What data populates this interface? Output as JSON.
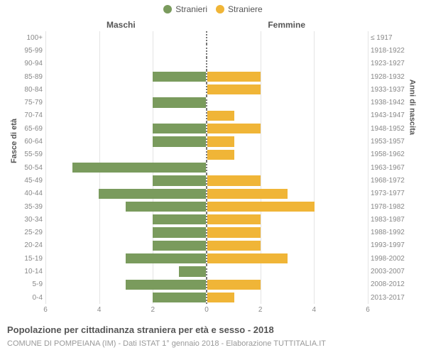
{
  "chart": {
    "type": "population-pyramid",
    "legend": [
      {
        "label": "Stranieri",
        "color": "#7a9b5d"
      },
      {
        "label": "Straniere",
        "color": "#f0b537"
      }
    ],
    "column_headers": {
      "left": "Maschi",
      "right": "Femmine"
    },
    "y_title_left": "Fasce di età",
    "y_title_right": "Anni di nascita",
    "x_max": 6,
    "x_ticks_left": [
      6,
      4,
      2,
      0
    ],
    "x_ticks_right": [
      0,
      2,
      4,
      6
    ],
    "grid_color": "#e4e4e4",
    "axis_line_color": "#777777",
    "bar_colors": {
      "male": "#7a9b5d",
      "female": "#f0b537"
    },
    "background_color": "#ffffff",
    "rows": [
      {
        "age": "100+",
        "birth": "≤ 1917",
        "m": 0,
        "f": 0
      },
      {
        "age": "95-99",
        "birth": "1918-1922",
        "m": 0,
        "f": 0
      },
      {
        "age": "90-94",
        "birth": "1923-1927",
        "m": 0,
        "f": 0
      },
      {
        "age": "85-89",
        "birth": "1928-1932",
        "m": 2,
        "f": 2
      },
      {
        "age": "80-84",
        "birth": "1933-1937",
        "m": 0,
        "f": 2
      },
      {
        "age": "75-79",
        "birth": "1938-1942",
        "m": 2,
        "f": 0
      },
      {
        "age": "70-74",
        "birth": "1943-1947",
        "m": 0,
        "f": 1
      },
      {
        "age": "65-69",
        "birth": "1948-1952",
        "m": 2,
        "f": 2
      },
      {
        "age": "60-64",
        "birth": "1953-1957",
        "m": 2,
        "f": 1
      },
      {
        "age": "55-59",
        "birth": "1958-1962",
        "m": 0,
        "f": 1
      },
      {
        "age": "50-54",
        "birth": "1963-1967",
        "m": 5,
        "f": 0
      },
      {
        "age": "45-49",
        "birth": "1968-1972",
        "m": 2,
        "f": 2
      },
      {
        "age": "40-44",
        "birth": "1973-1977",
        "m": 4,
        "f": 3
      },
      {
        "age": "35-39",
        "birth": "1978-1982",
        "m": 3,
        "f": 4
      },
      {
        "age": "30-34",
        "birth": "1983-1987",
        "m": 2,
        "f": 2
      },
      {
        "age": "25-29",
        "birth": "1988-1992",
        "m": 2,
        "f": 2
      },
      {
        "age": "20-24",
        "birth": "1993-1997",
        "m": 2,
        "f": 2
      },
      {
        "age": "15-19",
        "birth": "1998-2002",
        "m": 3,
        "f": 3
      },
      {
        "age": "10-14",
        "birth": "2003-2007",
        "m": 1,
        "f": 0
      },
      {
        "age": "5-9",
        "birth": "2008-2012",
        "m": 3,
        "f": 2
      },
      {
        "age": "0-4",
        "birth": "2013-2017",
        "m": 2,
        "f": 1
      }
    ],
    "title": "Popolazione per cittadinanza straniera per età e sesso - 2018",
    "subtitle": "COMUNE DI POMPEIANA (IM) - Dati ISTAT 1° gennaio 2018 - Elaborazione TUTTITALIA.IT",
    "font": {
      "tick_size": 10,
      "header_size": 12,
      "title_size": 13,
      "subtitle_size": 11
    }
  }
}
